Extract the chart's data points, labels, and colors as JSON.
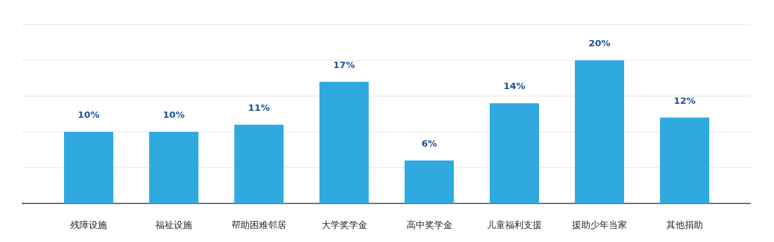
{
  "chart_data": {
    "type": "bar",
    "categories": [
      "残障设施",
      "福祉设施",
      "帮助困难邻居",
      "大学奖学金",
      "高中奖学金",
      "儿童福利支援",
      "援助少年当家",
      "其他捐助"
    ],
    "values": [
      10,
      10,
      11,
      17,
      6,
      14,
      20,
      12
    ],
    "value_labels": [
      "10%",
      "10%",
      "11%",
      "17%",
      "6%",
      "14%",
      "20%",
      "12%"
    ],
    "color": "#2fa9e0",
    "ylim": [
      0,
      25
    ],
    "yticks": [
      {
        "value": 0,
        "label": null
      },
      {
        "value": 5,
        "label": null
      },
      {
        "value": 10,
        "label": null
      },
      {
        "value": 15,
        "label": null
      },
      {
        "value": 20,
        "label": null
      },
      {
        "value": 25,
        "label": null
      }
    ],
    "tick_labels": "x",
    "grid": "y"
  }
}
